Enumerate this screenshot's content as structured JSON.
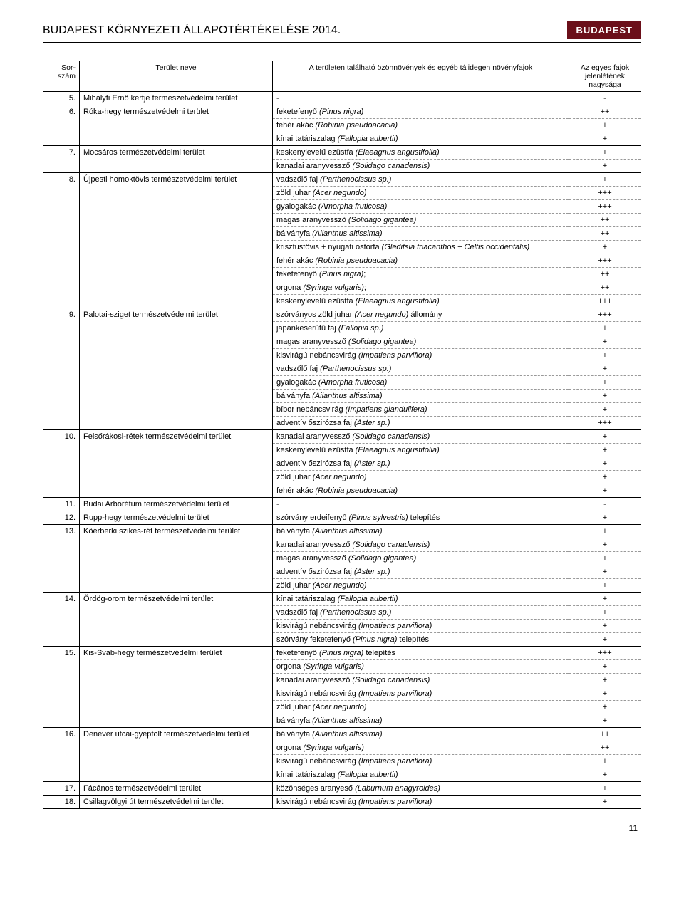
{
  "header": {
    "title": "BUDAPEST KÖRNYEZETI ÁLLAPOTÉRTÉKELÉSE 2014.",
    "logo": "BUDAPEST"
  },
  "columns": {
    "num": "Sor-szám",
    "area": "Terület neve",
    "species": "A területen található özönnövények és egyéb tájidegen növényfajok",
    "magnitude": "Az egyes fajok jelenlétének nagysága"
  },
  "page_number": "11",
  "rows": [
    {
      "n": "5.",
      "area": "Mihályfi Ernő kertje természetvédelmi terület",
      "items": [
        {
          "s": "-",
          "m": "-"
        }
      ]
    },
    {
      "n": "6.",
      "area": "Róka-hegy természetvédelmi terület",
      "items": [
        {
          "s": "feketefenyő (Pinus nigra)",
          "m": "++"
        },
        {
          "s": "fehér akác (Robinia pseudoacacia)",
          "m": "+"
        },
        {
          "s": "kínai tatáriszalag (Fallopia aubertii)",
          "m": "+"
        }
      ]
    },
    {
      "n": "7.",
      "area": "Mocsáros természetvédelmi terület",
      "items": [
        {
          "s": "keskenylevelű ezüstfa (Elaeagnus angustifolia)",
          "m": "+"
        },
        {
          "s": "kanadai aranyvessző (Solidago canadensis)",
          "m": "+"
        }
      ]
    },
    {
      "n": "8.",
      "area": "Újpesti homoktövis természetvédelmi terület",
      "items": [
        {
          "s": "vadszőlő faj (Parthenocissus sp.)",
          "m": "+"
        },
        {
          "s": "zöld juhar (Acer negundo)",
          "m": "+++"
        },
        {
          "s": "gyalogakác (Amorpha fruticosa)",
          "m": "+++"
        },
        {
          "s": "magas aranyvessző (Solidago gigantea)",
          "m": "++"
        },
        {
          "s": "bálványfa (Ailanthus altissima)",
          "m": "++"
        },
        {
          "s": "krisztustövis + nyugati ostorfa (Gleditsia triacanthos + Celtis occidentalis)",
          "m": "+"
        },
        {
          "s": "fehér akác (Robinia pseudoacacia)",
          "m": "+++"
        },
        {
          "s": "feketefenyő (Pinus nigra);",
          "m": "++"
        },
        {
          "s": "orgona (Syringa vulgaris);",
          "m": "++"
        },
        {
          "s": "keskenylevelű ezüstfa (Elaeagnus angustifolia)",
          "m": "+++"
        }
      ]
    },
    {
      "n": "9.",
      "area": "Palotai-sziget természetvédelmi terület",
      "items": [
        {
          "s": "szórványos zöld juhar (Acer negundo) állomány",
          "m": "+++"
        },
        {
          "s": "japánkeserűfű faj (Fallopia sp.)",
          "m": "+"
        },
        {
          "s": "magas aranyvessző (Solidago gigantea)",
          "m": "+"
        },
        {
          "s": "kisvirágú nebáncsvirág (Impatiens parviflora)",
          "m": "+"
        },
        {
          "s": "vadszőlő faj (Parthenocissus sp.)",
          "m": "+"
        },
        {
          "s": "gyalogakác (Amorpha fruticosa)",
          "m": "+"
        },
        {
          "s": "bálványfa (Ailanthus altissima)",
          "m": "+"
        },
        {
          "s": "bíbor nebáncsvirág (Impatiens glandulifera)",
          "m": "+"
        },
        {
          "s": "adventív őszirózsa faj (Aster sp.)",
          "m": "+++"
        }
      ]
    },
    {
      "n": "10.",
      "area": "Felsőrákosi-rétek természetvédelmi terület",
      "items": [
        {
          "s": "kanadai aranyvessző (Solidago canadensis)",
          "m": "+"
        },
        {
          "s": "keskenylevelű ezüstfa (Elaeagnus angustifolia)",
          "m": "+"
        },
        {
          "s": "adventív őszirózsa faj (Aster sp.)",
          "m": "+"
        },
        {
          "s": "zöld juhar (Acer negundo)",
          "m": "+"
        },
        {
          "s": "fehér akác (Robinia pseudoacacia)",
          "m": "+"
        }
      ]
    },
    {
      "n": "11.",
      "area": "Budai Arborétum természetvédelmi terület",
      "items": [
        {
          "s": "-",
          "m": "-"
        }
      ]
    },
    {
      "n": "12.",
      "area": "Rupp-hegy természetvédelmi terület",
      "items": [
        {
          "s": "szórvány erdeifenyő (Pinus sylvestris) telepítés",
          "m": "+"
        }
      ]
    },
    {
      "n": "13.",
      "area": "Kőérberki szikes-rét természetvédelmi terület",
      "items": [
        {
          "s": "bálványfa (Ailanthus altissima)",
          "m": "+"
        },
        {
          "s": "kanadai aranyvessző (Solidago canadensis)",
          "m": "+"
        },
        {
          "s": "magas aranyvessző (Solidago gigantea)",
          "m": "+"
        },
        {
          "s": "adventív őszirózsa faj (Aster sp.)",
          "m": "+"
        },
        {
          "s": "zöld juhar (Acer negundo)",
          "m": "+"
        }
      ]
    },
    {
      "n": "14.",
      "area": "Ördög-orom természetvédelmi terület",
      "items": [
        {
          "s": "kínai tatáriszalag (Fallopia aubertii)",
          "m": "+"
        },
        {
          "s": "vadszőlő faj (Parthenocissus sp.)",
          "m": "+"
        },
        {
          "s": "kisvirágú nebáncsvirág (Impatiens parviflora)",
          "m": "+"
        },
        {
          "s": "szórvány feketefenyő (Pinus nigra) telepítés",
          "m": "+"
        }
      ]
    },
    {
      "n": "15.",
      "area": "Kis-Sváb-hegy természetvédelmi terület",
      "items": [
        {
          "s": "feketefenyő (Pinus nigra) telepítés",
          "m": "+++"
        },
        {
          "s": "orgona (Syringa vulgaris)",
          "m": "+"
        },
        {
          "s": "kanadai aranyvessző (Solidago canadensis)",
          "m": "+"
        },
        {
          "s": "kisvirágú nebáncsvirág (Impatiens parviflora)",
          "m": "+"
        },
        {
          "s": "zöld juhar (Acer negundo)",
          "m": "+"
        },
        {
          "s": "bálványfa (Ailanthus altissima)",
          "m": "+"
        }
      ]
    },
    {
      "n": "16.",
      "area": "Denevér utcai-gyepfolt természetvédelmi terület",
      "items": [
        {
          "s": "bálványfa (Ailanthus altissima)",
          "m": "++"
        },
        {
          "s": "orgona (Syringa vulgaris)",
          "m": "++"
        },
        {
          "s": "kisvirágú nebáncsvirág (Impatiens parviflora)",
          "m": "+"
        },
        {
          "s": "kínai tatáriszalag (Fallopia aubertii)",
          "m": "+"
        }
      ]
    },
    {
      "n": "17.",
      "area": "Fácános természetvédelmi terület",
      "items": [
        {
          "s": "közönséges aranyeső (Laburnum anagyroides)",
          "m": "+"
        }
      ]
    },
    {
      "n": "18.",
      "area": "Csillagvölgyi út természetvédelmi terület",
      "items": [
        {
          "s": "kisvirágú nebáncsvirág (Impatiens parviflora)",
          "m": "+"
        }
      ]
    }
  ]
}
